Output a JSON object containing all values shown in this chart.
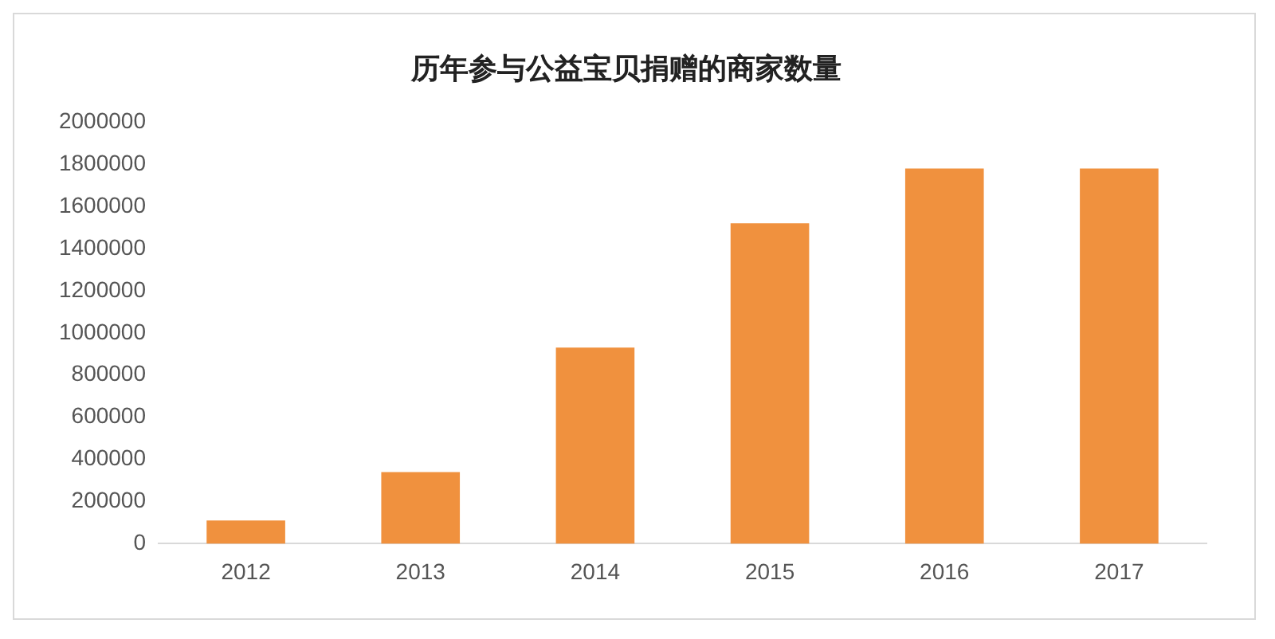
{
  "chart_data": {
    "type": "bar",
    "title": "历年参与公益宝贝捐赠的商家数量",
    "categories": [
      "2012",
      "2013",
      "2014",
      "2015",
      "2016",
      "2017"
    ],
    "values": [
      110000,
      340000,
      930000,
      1520000,
      1780000,
      1780000
    ],
    "color": "#f0913e",
    "ylim": [
      0,
      2000000
    ],
    "yticks": [
      0,
      200000,
      400000,
      600000,
      800000,
      1000000,
      1200000,
      1400000,
      1600000,
      1800000,
      2000000
    ],
    "grid": false,
    "legend": false
  }
}
